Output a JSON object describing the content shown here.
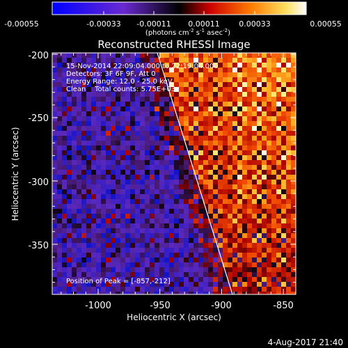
{
  "colorbar": {
    "ticks": [
      "-0.00055",
      "-0.00033",
      "-0.00011",
      "0.00011",
      "0.00033",
      "0.00055"
    ],
    "units_prefix": "(photons cm",
    "units_exp1": "-2",
    "units_mid": " s",
    "units_exp2": "-1",
    "units_mid2": " asec",
    "units_exp3": "-2",
    "units_suffix": ")"
  },
  "plot": {
    "title": "Reconstructed RHESSI Image",
    "xlabel": "Heliocentric X (arcsec)",
    "ylabel": "Heliocentric Y (arcsec)",
    "xticks": [
      "-1000",
      "-950",
      "-900",
      "-850"
    ],
    "yticks": [
      "-200",
      "-250",
      "-300",
      "-350"
    ],
    "annotations": [
      "15-Nov-2014 22:09:04.000 to 22:19:04.000",
      "Detectors: 3F 6F 9F, Att 0",
      "Energy Range: 12.0 - 25.0 keV",
      "Clean    Total counts: 5.75E+03"
    ],
    "peak_label": "Position of Peak = [-857,-212]"
  },
  "footer": {
    "timestamp": "4-Aug-2017 21:40"
  }
}
